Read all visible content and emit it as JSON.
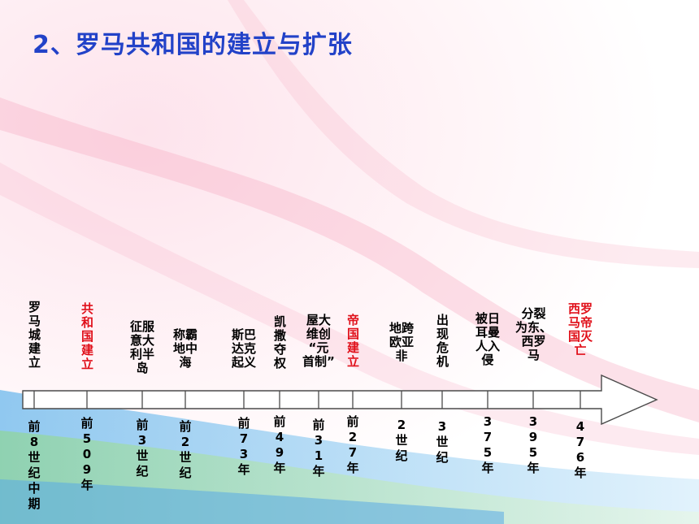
{
  "title": "2、罗马共和国的建立与扩张",
  "colors": {
    "title": "#2242c8",
    "highlight": "#e0101a",
    "text": "#000000"
  },
  "events": [
    {
      "lines": [
        "罗",
        "马",
        "城",
        "建",
        "立"
      ],
      "date": "前8世纪中期",
      "highlight": false
    },
    {
      "lines": [
        "共",
        "和",
        "国",
        "建",
        "立"
      ],
      "date": "前509年",
      "highlight": true
    },
    {
      "lines": [
        "征服",
        "意大",
        "利半",
        "岛"
      ],
      "date": "前3世纪",
      "highlight": false
    },
    {
      "lines": [
        "称霸",
        "地中",
        "海"
      ],
      "date": "前2世纪",
      "highlight": false
    },
    {
      "lines": [
        "斯巴",
        "达克",
        "起义"
      ],
      "date": "前73年",
      "highlight": false
    },
    {
      "lines": [
        "凯",
        "撒",
        "夺",
        "权"
      ],
      "date": "前49年",
      "highlight": false
    },
    {
      "lines": [
        "屋大",
        "维创",
        "“元",
        "首制”"
      ],
      "date": "前31年",
      "highlight": false
    },
    {
      "lines": [
        "帝",
        "国",
        "建",
        "立"
      ],
      "date": "前27年",
      "highlight": true
    },
    {
      "lines": [
        "地跨",
        "欧亚",
        "非"
      ],
      "date": "2世纪",
      "highlight": false
    },
    {
      "lines": [
        "出",
        "现",
        "危",
        "机"
      ],
      "date": "3世纪",
      "highlight": false
    },
    {
      "lines": [
        "被日",
        "耳曼",
        "人入",
        "侵"
      ],
      "date": "375年",
      "highlight": false
    },
    {
      "lines": [
        "分裂",
        "为东、",
        "西罗",
        "马"
      ],
      "date": "395年",
      "highlight": false
    },
    {
      "lines": [
        "西罗",
        "马帝",
        "国灭",
        "亡"
      ],
      "date": "476年",
      "highlight": true
    }
  ]
}
